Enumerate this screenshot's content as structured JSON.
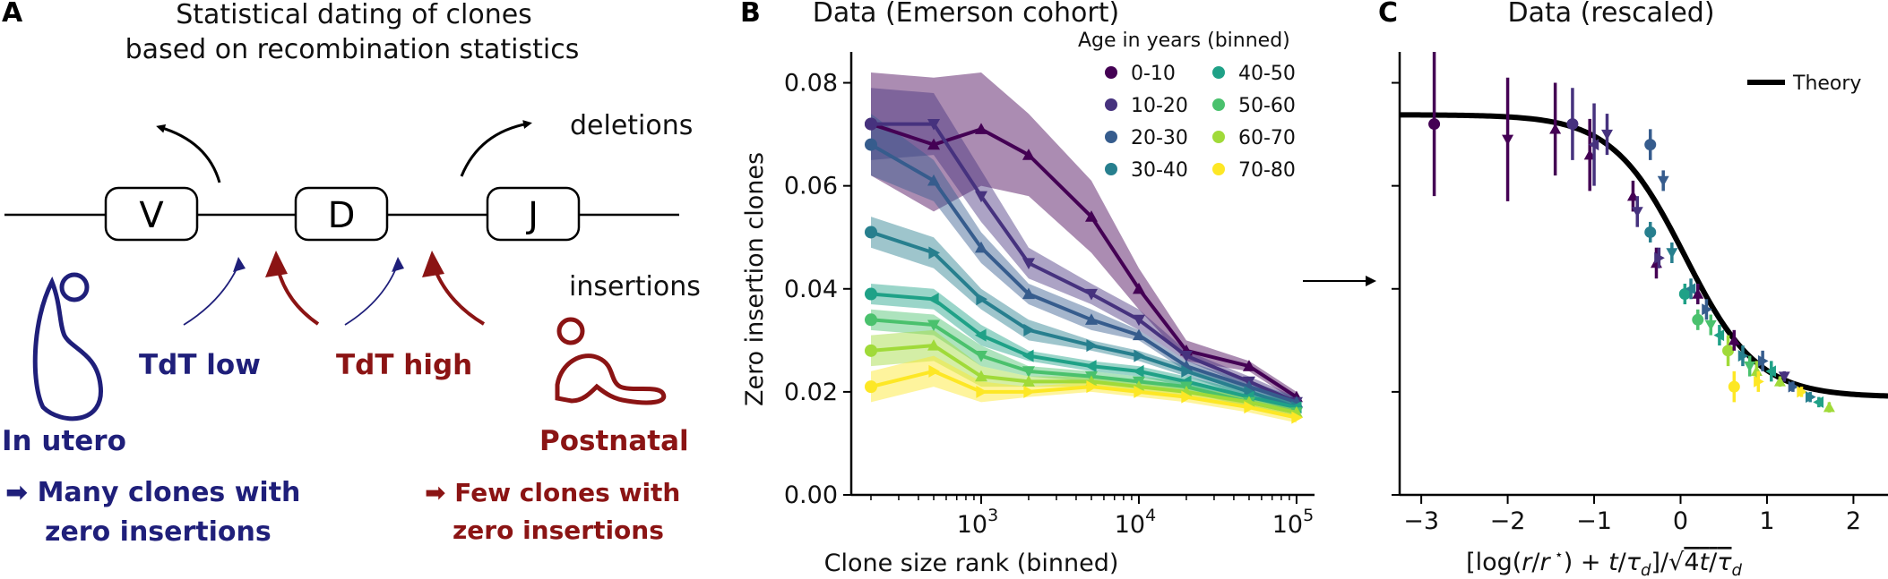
{
  "panel_a": {
    "label": "A",
    "title_line1": "Statistical dating of clones",
    "title_line2": "based on recombination statistics",
    "genes": [
      "V",
      "D",
      "J"
    ],
    "deletions_label": "deletions",
    "insertions_label": "insertions",
    "tdt_low": "TdT low",
    "tdt_high": "TdT high",
    "in_utero": "In utero",
    "postnatal": "Postnatal",
    "many_clones_line1": "➡ Many clones with",
    "many_clones_line2": "zero insertions",
    "few_clones_line1": "➡ Few clones with",
    "few_clones_line2": "zero insertions",
    "blue_color": "#1f1f7a",
    "red_color": "#8b1414"
  },
  "chart_data": [
    {
      "panel": "B",
      "type": "line",
      "title": "Data (Emerson cohort)",
      "xlabel": "Clone size rank (binned)",
      "ylabel": "Zero insertion clones",
      "xscale": "log",
      "xlim": [
        150,
        130000
      ],
      "ylim": [
        0.0,
        0.086
      ],
      "yticks": [
        0.0,
        0.02,
        0.04,
        0.06,
        0.08
      ],
      "ytick_labels": [
        "0.00",
        "0.02",
        "0.04",
        "0.06",
        "0.08"
      ],
      "xticks": [
        1000,
        10000,
        100000
      ],
      "xtick_labels": [
        [
          "10",
          "3"
        ],
        [
          "10",
          "4"
        ],
        [
          "10",
          "5"
        ]
      ],
      "legend_title": "Age in years (binned)",
      "legend_placement": "top-right",
      "x": [
        200,
        500,
        1000,
        2000,
        5000,
        10000,
        20000,
        50000,
        100000
      ],
      "series": [
        {
          "name": "0-10",
          "color": "#440154",
          "marker": "triangle-up",
          "values": [
            0.072,
            0.068,
            0.071,
            0.066,
            0.054,
            0.04,
            0.028,
            0.025,
            0.019
          ],
          "band": [
            0.01,
            0.013,
            0.011,
            0.008,
            0.007,
            0.004,
            0.002,
            0.001,
            0.001
          ]
        },
        {
          "name": "10-20",
          "color": "#46327e",
          "marker": "triangle-down",
          "values": [
            0.072,
            0.072,
            0.058,
            0.045,
            0.039,
            0.034,
            0.027,
            0.022,
            0.018
          ],
          "band": [
            0.007,
            0.006,
            0.005,
            0.003,
            0.002,
            0.002,
            0.001,
            0.001,
            0.001
          ]
        },
        {
          "name": "20-30",
          "color": "#365c8d",
          "marker": "triangle-up",
          "values": [
            0.068,
            0.061,
            0.048,
            0.039,
            0.034,
            0.031,
            0.025,
            0.021,
            0.018
          ],
          "band": [
            0.006,
            0.004,
            0.003,
            0.002,
            0.002,
            0.001,
            0.001,
            0.001,
            0.001
          ]
        },
        {
          "name": "30-40",
          "color": "#277f8e",
          "marker": "triangle-right",
          "values": [
            0.051,
            0.047,
            0.038,
            0.032,
            0.029,
            0.027,
            0.024,
            0.02,
            0.017
          ],
          "band": [
            0.003,
            0.003,
            0.002,
            0.002,
            0.001,
            0.001,
            0.001,
            0.001,
            0.001
          ]
        },
        {
          "name": "40-50",
          "color": "#1fa187",
          "marker": "triangle-left",
          "values": [
            0.039,
            0.038,
            0.031,
            0.027,
            0.025,
            0.024,
            0.022,
            0.019,
            0.017
          ],
          "band": [
            0.002,
            0.002,
            0.002,
            0.001,
            0.001,
            0.001,
            0.001,
            0.001,
            0.001
          ]
        },
        {
          "name": "50-60",
          "color": "#4ac16d",
          "marker": "triangle-down",
          "values": [
            0.034,
            0.033,
            0.027,
            0.024,
            0.023,
            0.022,
            0.021,
            0.018,
            0.016
          ],
          "band": [
            0.002,
            0.002,
            0.002,
            0.001,
            0.001,
            0.001,
            0.001,
            0.001,
            0.001
          ]
        },
        {
          "name": "60-70",
          "color": "#a0da39",
          "marker": "triangle-up",
          "values": [
            0.028,
            0.029,
            0.023,
            0.022,
            0.022,
            0.021,
            0.02,
            0.018,
            0.016
          ],
          "band": [
            0.003,
            0.003,
            0.002,
            0.001,
            0.001,
            0.001,
            0.001,
            0.001,
            0.001
          ]
        },
        {
          "name": "70-80",
          "color": "#fde725",
          "marker": "triangle-right",
          "values": [
            0.021,
            0.024,
            0.02,
            0.02,
            0.021,
            0.02,
            0.019,
            0.017,
            0.015
          ],
          "band": [
            0.003,
            0.003,
            0.002,
            0.001,
            0.001,
            0.001,
            0.001,
            0.001,
            0.001
          ]
        }
      ]
    },
    {
      "panel": "C",
      "type": "scatter",
      "title": "Data (rescaled)",
      "xlabel": "[log(r/r*) + t/τd] / √(4t/τd)",
      "xlabel_parts": {
        "open": "[log(",
        "r": "r",
        "slash": "/",
        "rstar": "r",
        "star": " ⋆",
        "close": ") + ",
        "t1": "t",
        "slash2": "/",
        "tau1": "τ",
        "d1": "d",
        "bracket": "]",
        "slash3": "/",
        "sqrt": "√",
        "four": "4",
        "t2": "t",
        "slash4": "/",
        "tau2": "τ",
        "d2": "d"
      },
      "xlim": [
        -3.25,
        2.4
      ],
      "xticks": [
        -3,
        -2,
        -1,
        0,
        1,
        2
      ],
      "xtick_labels": [
        "−3",
        "−2",
        "−1",
        "0",
        "1",
        "2"
      ],
      "ylim": [
        0.0,
        0.086
      ],
      "yticks": [
        0.0,
        0.02,
        0.04,
        0.06,
        0.08
      ],
      "legend": [
        {
          "name": "Theory",
          "color": "#000000"
        }
      ],
      "legend_placement": "top-right",
      "theory": {
        "high": 0.0738,
        "low": 0.019,
        "center": 0.05,
        "width": 0.42
      },
      "points": [
        {
          "x": -2.85,
          "y": 0.072,
          "err": 0.014,
          "color": "#440154",
          "marker": "circle"
        },
        {
          "x": -2.0,
          "y": 0.069,
          "err": 0.012,
          "color": "#440154",
          "marker": "triangle-down"
        },
        {
          "x": -1.45,
          "y": 0.071,
          "err": 0.009,
          "color": "#440154",
          "marker": "triangle-up"
        },
        {
          "x": -1.25,
          "y": 0.072,
          "err": 0.007,
          "color": "#46327e",
          "marker": "circle"
        },
        {
          "x": -1.05,
          "y": 0.066,
          "err": 0.007,
          "color": "#440154",
          "marker": "triangle-up"
        },
        {
          "x": -1.0,
          "y": 0.068,
          "err": 0.008,
          "color": "#46327e",
          "marker": "triangle-left"
        },
        {
          "x": -0.85,
          "y": 0.07,
          "err": 0.004,
          "color": "#46327e",
          "marker": "triangle-down"
        },
        {
          "x": -0.35,
          "y": 0.068,
          "err": 0.003,
          "color": "#365c8d",
          "marker": "circle"
        },
        {
          "x": -0.55,
          "y": 0.058,
          "err": 0.003,
          "color": "#440154",
          "marker": "triangle-up"
        },
        {
          "x": -0.5,
          "y": 0.055,
          "err": 0.003,
          "color": "#46327e",
          "marker": "triangle-down"
        },
        {
          "x": -0.2,
          "y": 0.061,
          "err": 0.002,
          "color": "#365c8d",
          "marker": "triangle-down"
        },
        {
          "x": -0.35,
          "y": 0.051,
          "err": 0.002,
          "color": "#277f8e",
          "marker": "circle"
        },
        {
          "x": -0.28,
          "y": 0.045,
          "err": 0.003,
          "color": "#440154",
          "marker": "triangle-up"
        },
        {
          "x": -0.25,
          "y": 0.046,
          "err": 0.002,
          "color": "#46327e",
          "marker": "triangle-right"
        },
        {
          "x": -0.1,
          "y": 0.047,
          "err": 0.002,
          "color": "#277f8e",
          "marker": "triangle-down"
        },
        {
          "x": 0.05,
          "y": 0.039,
          "err": 0.002,
          "color": "#1fa187",
          "marker": "circle"
        },
        {
          "x": 0.12,
          "y": 0.04,
          "err": 0.002,
          "color": "#277f8e",
          "marker": "triangle-left"
        },
        {
          "x": 0.2,
          "y": 0.039,
          "err": 0.002,
          "color": "#440154",
          "marker": "triangle-up"
        },
        {
          "x": 0.3,
          "y": 0.036,
          "err": 0.002,
          "color": "#365c8d",
          "marker": "triangle-right"
        },
        {
          "x": 0.2,
          "y": 0.034,
          "err": 0.002,
          "color": "#4ac16d",
          "marker": "circle"
        },
        {
          "x": 0.35,
          "y": 0.033,
          "err": 0.002,
          "color": "#4ac16d",
          "marker": "triangle-down"
        },
        {
          "x": 0.45,
          "y": 0.031,
          "err": 0.002,
          "color": "#1fa187",
          "marker": "triangle-left"
        },
        {
          "x": 0.55,
          "y": 0.028,
          "err": 0.003,
          "color": "#a0da39",
          "marker": "circle"
        },
        {
          "x": 0.62,
          "y": 0.03,
          "err": 0.002,
          "color": "#440154",
          "marker": "triangle-up"
        },
        {
          "x": 0.72,
          "y": 0.027,
          "err": 0.002,
          "color": "#277f8e",
          "marker": "triangle-right"
        },
        {
          "x": 0.8,
          "y": 0.025,
          "err": 0.002,
          "color": "#4ac16d",
          "marker": "triangle-down"
        },
        {
          "x": 0.88,
          "y": 0.024,
          "err": 0.002,
          "color": "#a0da39",
          "marker": "triangle-up"
        },
        {
          "x": 0.95,
          "y": 0.026,
          "err": 0.002,
          "color": "#365c8d",
          "marker": "triangle-right"
        },
        {
          "x": 0.62,
          "y": 0.021,
          "err": 0.003,
          "color": "#fde725",
          "marker": "circle"
        },
        {
          "x": 0.9,
          "y": 0.022,
          "err": 0.002,
          "color": "#fde725",
          "marker": "triangle-right"
        },
        {
          "x": 1.05,
          "y": 0.024,
          "err": 0.002,
          "color": "#1fa187",
          "marker": "triangle-left"
        },
        {
          "x": 1.15,
          "y": 0.022,
          "err": 0.001,
          "color": "#a0da39",
          "marker": "triangle-up"
        },
        {
          "x": 1.2,
          "y": 0.023,
          "err": 0.001,
          "color": "#46327e",
          "marker": "triangle-down"
        },
        {
          "x": 1.3,
          "y": 0.021,
          "err": 0.001,
          "color": "#365c8d",
          "marker": "triangle-right"
        },
        {
          "x": 1.4,
          "y": 0.02,
          "err": 0.001,
          "color": "#fde725",
          "marker": "triangle-right"
        },
        {
          "x": 1.5,
          "y": 0.019,
          "err": 0.001,
          "color": "#277f8e",
          "marker": "triangle-right"
        },
        {
          "x": 1.6,
          "y": 0.018,
          "err": 0.001,
          "color": "#1fa187",
          "marker": "triangle-left"
        },
        {
          "x": 1.72,
          "y": 0.017,
          "err": 0.001,
          "color": "#a0da39",
          "marker": "triangle-up"
        }
      ]
    }
  ]
}
